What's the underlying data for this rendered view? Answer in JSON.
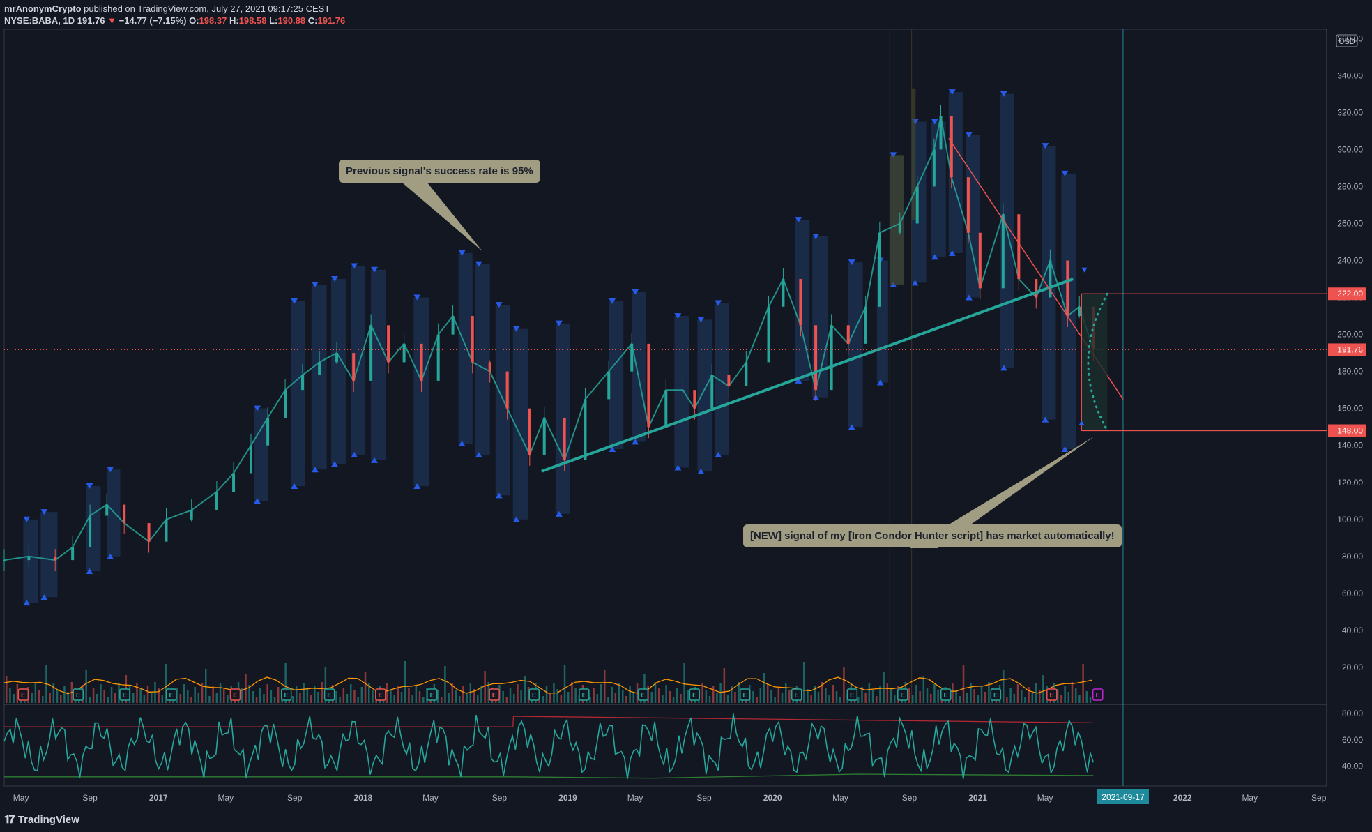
{
  "header": {
    "author": "mrAnonymCrypto",
    "published": "published on TradingView.com, July 27, 2021 09:17:25 CEST",
    "symbol": "NYSE:BABA, 1D",
    "last": "191.76",
    "change_arrow": "▼",
    "change": "−14.77 (−7.15%)",
    "o_label": "O:",
    "o": "198.37",
    "h_label": "H:",
    "h": "198.58",
    "l_label": "L:",
    "l": "190.88",
    "c_label": "C:",
    "c": "191.76"
  },
  "footer": {
    "brand": "TradingView"
  },
  "callouts": {
    "previous": "Previous signal's success rate is 95%",
    "new_signal": "[NEW] signal of my [Iron Condor Hunter script] has market automatically!"
  },
  "colors": {
    "background": "#131722",
    "up": "#26a69a",
    "down": "#ef5350",
    "box": "#1e3a5f",
    "trend": "#26a69a",
    "resistance": "#ef5350",
    "ma": "#ff9800",
    "callout": "#a09d83",
    "xlabel_highlight": "#1f8a9b"
  },
  "chart_data": [
    {
      "type": "candlestick",
      "title": "NYSE:BABA, 1D",
      "price_axis": {
        "currency": "USD",
        "ticks": [
          360,
          340,
          320,
          300,
          280,
          260,
          240,
          220,
          200,
          180,
          160,
          140,
          120,
          100,
          80,
          60,
          40,
          20
        ],
        "ylim": [
          0,
          365
        ],
        "price_labels": [
          {
            "value": 222.0,
            "label": "222.00"
          },
          {
            "value": 191.76,
            "label": "191.76"
          },
          {
            "value": 148.0,
            "label": "148.00"
          }
        ]
      },
      "time_axis": {
        "range": [
          "2016-04-01",
          "2022-09-15"
        ],
        "ticks": [
          {
            "date": "2016-05-01",
            "label": "May"
          },
          {
            "date": "2016-09-01",
            "label": "Sep"
          },
          {
            "date": "2017-01-01",
            "label": "2017"
          },
          {
            "date": "2017-05-01",
            "label": "May"
          },
          {
            "date": "2017-09-01",
            "label": "Sep"
          },
          {
            "date": "2018-01-01",
            "label": "2018"
          },
          {
            "date": "2018-05-01",
            "label": "May"
          },
          {
            "date": "2018-09-01",
            "label": "Sep"
          },
          {
            "date": "2019-01-01",
            "label": "2019"
          },
          {
            "date": "2019-05-01",
            "label": "May"
          },
          {
            "date": "2019-09-01",
            "label": "Sep"
          },
          {
            "date": "2020-01-01",
            "label": "2020"
          },
          {
            "date": "2020-05-01",
            "label": "May"
          },
          {
            "date": "2020-09-01",
            "label": "Sep"
          },
          {
            "date": "2021-01-01",
            "label": "2021"
          },
          {
            "date": "2021-05-01",
            "label": "May"
          },
          {
            "date": "2022-01-01",
            "label": "2022"
          },
          {
            "date": "2022-05-01",
            "label": "May"
          },
          {
            "date": "2022-09-01",
            "label": "Sep"
          }
        ],
        "highlight": {
          "date": "2021-09-17",
          "label": "2021-09-17"
        }
      },
      "price_path": [
        [
          "2016-04-01",
          78
        ],
        [
          "2016-05-15",
          80
        ],
        [
          "2016-07-01",
          78
        ],
        [
          "2016-08-01",
          85
        ],
        [
          "2016-09-01",
          102
        ],
        [
          "2016-10-01",
          108
        ],
        [
          "2016-11-01",
          98
        ],
        [
          "2016-12-15",
          88
        ],
        [
          "2017-01-15",
          100
        ],
        [
          "2017-03-01",
          105
        ],
        [
          "2017-04-15",
          115
        ],
        [
          "2017-05-15",
          125
        ],
        [
          "2017-06-15",
          140
        ],
        [
          "2017-07-15",
          155
        ],
        [
          "2017-08-15",
          170
        ],
        [
          "2017-09-15",
          178
        ],
        [
          "2017-10-15",
          185
        ],
        [
          "2017-11-15",
          190
        ],
        [
          "2017-12-15",
          175
        ],
        [
          "2018-01-15",
          205
        ],
        [
          "2018-02-15",
          185
        ],
        [
          "2018-03-15",
          195
        ],
        [
          "2018-04-15",
          175
        ],
        [
          "2018-05-15",
          200
        ],
        [
          "2018-06-10",
          210
        ],
        [
          "2018-07-15",
          185
        ],
        [
          "2018-08-15",
          180
        ],
        [
          "2018-09-15",
          160
        ],
        [
          "2018-10-25",
          135
        ],
        [
          "2018-11-20",
          155
        ],
        [
          "2018-12-26",
          132
        ],
        [
          "2019-02-01",
          165
        ],
        [
          "2019-03-15",
          180
        ],
        [
          "2019-04-25",
          195
        ],
        [
          "2019-05-25",
          150
        ],
        [
          "2019-06-25",
          170
        ],
        [
          "2019-07-25",
          170
        ],
        [
          "2019-08-15",
          160
        ],
        [
          "2019-09-15",
          178
        ],
        [
          "2019-10-15",
          172
        ],
        [
          "2019-11-15",
          185
        ],
        [
          "2019-12-25",
          215
        ],
        [
          "2020-01-20",
          230
        ],
        [
          "2020-02-20",
          205
        ],
        [
          "2020-03-18",
          170
        ],
        [
          "2020-04-15",
          205
        ],
        [
          "2020-05-15",
          195
        ],
        [
          "2020-06-15",
          215
        ],
        [
          "2020-07-10",
          255
        ],
        [
          "2020-08-15",
          260
        ],
        [
          "2020-09-15",
          280
        ],
        [
          "2020-10-15",
          300
        ],
        [
          "2020-10-27",
          318
        ],
        [
          "2020-11-15",
          285
        ],
        [
          "2020-12-15",
          255
        ],
        [
          "2021-01-05",
          225
        ],
        [
          "2021-02-15",
          265
        ],
        [
          "2021-03-15",
          230
        ],
        [
          "2021-04-15",
          220
        ],
        [
          "2021-05-10",
          240
        ],
        [
          "2021-06-10",
          210
        ],
        [
          "2021-07-01",
          215
        ],
        [
          "2021-07-26",
          191.76
        ]
      ],
      "signal_boxes": [
        {
          "start": "2016-05-05",
          "end": "2016-06-01",
          "high": 100,
          "low": 55
        },
        {
          "start": "2016-06-05",
          "end": "2016-07-05",
          "high": 104,
          "low": 58
        },
        {
          "start": "2016-08-25",
          "end": "2016-09-20",
          "high": 118,
          "low": 72
        },
        {
          "start": "2016-10-01",
          "end": "2016-10-25",
          "high": 127,
          "low": 80
        },
        {
          "start": "2017-06-20",
          "end": "2017-07-15",
          "high": 160,
          "low": 110
        },
        {
          "start": "2017-08-25",
          "end": "2017-09-20",
          "high": 218,
          "low": 118
        },
        {
          "start": "2017-10-01",
          "end": "2017-10-28",
          "high": 227,
          "low": 127
        },
        {
          "start": "2017-11-05",
          "end": "2017-12-01",
          "high": 230,
          "low": 130
        },
        {
          "start": "2017-12-10",
          "end": "2018-01-05",
          "high": 237,
          "low": 135
        },
        {
          "start": "2018-01-15",
          "end": "2018-02-10",
          "high": 235,
          "low": 132
        },
        {
          "start": "2018-04-01",
          "end": "2018-04-28",
          "high": 220,
          "low": 118
        },
        {
          "start": "2018-06-20",
          "end": "2018-07-15",
          "high": 244,
          "low": 141
        },
        {
          "start": "2018-07-20",
          "end": "2018-08-15",
          "high": 238,
          "low": 135
        },
        {
          "start": "2018-08-25",
          "end": "2018-09-20",
          "high": 216,
          "low": 113
        },
        {
          "start": "2018-09-25",
          "end": "2018-10-22",
          "high": 203,
          "low": 100
        },
        {
          "start": "2018-12-10",
          "end": "2019-01-05",
          "high": 206,
          "low": 103
        },
        {
          "start": "2019-03-15",
          "end": "2019-04-10",
          "high": 218,
          "low": 138
        },
        {
          "start": "2019-04-25",
          "end": "2019-05-20",
          "high": 223,
          "low": 142
        },
        {
          "start": "2019-07-10",
          "end": "2019-08-05",
          "high": 210,
          "low": 128
        },
        {
          "start": "2019-08-20",
          "end": "2019-09-15",
          "high": 208,
          "low": 126
        },
        {
          "start": "2019-09-20",
          "end": "2019-10-15",
          "high": 217,
          "low": 135
        },
        {
          "start": "2020-02-10",
          "end": "2020-03-07",
          "high": 262,
          "low": 175
        },
        {
          "start": "2020-03-12",
          "end": "2020-04-08",
          "high": 253,
          "low": 166
        },
        {
          "start": "2020-05-15",
          "end": "2020-06-10",
          "high": 239,
          "low": 150
        },
        {
          "start": "2020-07-05",
          "end": "2020-07-25",
          "high": 240,
          "low": 174
        },
        {
          "start": "2020-07-28",
          "end": "2020-08-22",
          "high": 297,
          "low": 227
        },
        {
          "start": "2020-09-05",
          "end": "2020-10-01",
          "high": 315,
          "low": 228
        },
        {
          "start": "2020-10-10",
          "end": "2020-11-05",
          "high": 315,
          "low": 242
        },
        {
          "start": "2020-11-10",
          "end": "2020-12-05",
          "high": 331,
          "low": 244
        },
        {
          "start": "2020-12-10",
          "end": "2021-01-05",
          "high": 308,
          "low": 220
        },
        {
          "start": "2021-02-10",
          "end": "2021-03-07",
          "high": 330,
          "low": 182
        },
        {
          "start": "2021-04-25",
          "end": "2021-05-20",
          "high": 302,
          "low": 154
        },
        {
          "start": "2021-05-30",
          "end": "2021-06-25",
          "high": 287,
          "low": 138
        }
      ],
      "condor_boxes": [
        {
          "start": "2020-07-28",
          "end": "2020-08-22",
          "high": 297,
          "low": 227
        },
        {
          "start": "2020-09-05",
          "end": "2020-09-12",
          "high": 333,
          "low": 262
        }
      ],
      "trend_line": {
        "start": [
          "2018-11-15",
          126
        ],
        "end": [
          "2021-06-20",
          230
        ]
      },
      "resistance_line": {
        "start": [
          "2020-11-10",
          306
        ],
        "end": [
          "2021-09-17",
          165
        ]
      },
      "condor_range": {
        "start": "2021-07-05",
        "end": "2021-08-20",
        "upper": 222,
        "lower": 148
      },
      "upper_marker": {
        "date": "2021-07-10",
        "value": 235
      },
      "lower_marker": {
        "date": "2021-07-05",
        "value": 152
      },
      "earnings_markers": [
        {
          "date": "2016-05-05",
          "type": "red"
        },
        {
          "date": "2016-08-11",
          "type": "teal"
        },
        {
          "date": "2016-11-02",
          "type": "teal"
        },
        {
          "date": "2017-01-24",
          "type": "teal"
        },
        {
          "date": "2017-05-18",
          "type": "red"
        },
        {
          "date": "2017-08-17",
          "type": "teal"
        },
        {
          "date": "2017-11-02",
          "type": "teal"
        },
        {
          "date": "2018-02-01",
          "type": "red"
        },
        {
          "date": "2018-05-04",
          "type": "teal"
        },
        {
          "date": "2018-08-23",
          "type": "red"
        },
        {
          "date": "2018-11-02",
          "type": "teal"
        },
        {
          "date": "2019-01-30",
          "type": "teal"
        },
        {
          "date": "2019-05-15",
          "type": "teal"
        },
        {
          "date": "2019-08-15",
          "type": "teal"
        },
        {
          "date": "2019-11-13",
          "type": "teal"
        },
        {
          "date": "2020-02-13",
          "type": "teal"
        },
        {
          "date": "2020-05-22",
          "type": "teal"
        },
        {
          "date": "2020-08-20",
          "type": "teal"
        },
        {
          "date": "2020-11-05",
          "type": "teal"
        },
        {
          "date": "2021-02-02",
          "type": "teal"
        },
        {
          "date": "2021-05-13",
          "type": "red"
        },
        {
          "date": "2021-08-03",
          "type": "purple"
        }
      ],
      "earnings_label": "E",
      "vertical_marker_dates": [
        "2020-07-28",
        "2020-09-05"
      ],
      "oscillator": {
        "ticks": [
          80,
          60,
          40
        ],
        "ylim": [
          25,
          87
        ],
        "upper_band": [
          [
            "2016-04-01",
            70
          ],
          [
            "2018-09-25",
            70
          ],
          [
            "2018-09-26",
            78
          ],
          [
            "2021-07-26",
            73
          ]
        ],
        "lower_band": [
          [
            "2016-04-01",
            32
          ],
          [
            "2018-09-25",
            32
          ],
          [
            "2019-06-01",
            31
          ],
          [
            "2020-06-01",
            34
          ],
          [
            "2021-07-26",
            33
          ]
        ]
      }
    }
  ]
}
